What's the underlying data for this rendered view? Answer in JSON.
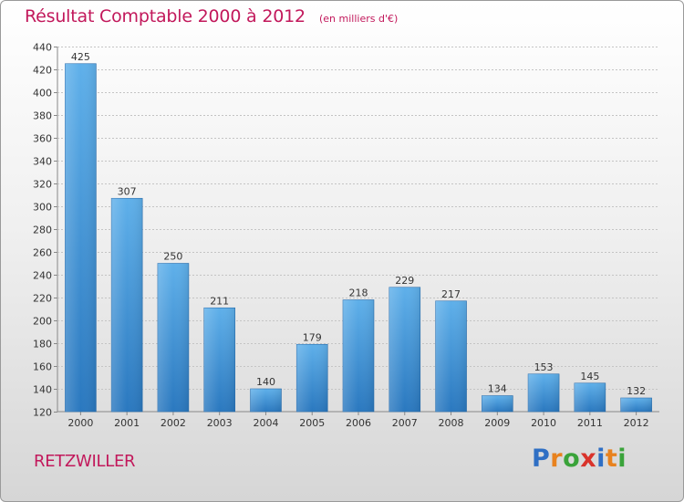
{
  "chart_data": {
    "type": "bar",
    "title": "Résultat Comptable 2000 à 2012",
    "subtitle": "(en milliers d'€)",
    "categories": [
      "2000",
      "2001",
      "2002",
      "2003",
      "2004",
      "2005",
      "2006",
      "2007",
      "2008",
      "2009",
      "2010",
      "2011",
      "2012"
    ],
    "values": [
      425,
      307,
      250,
      211,
      140,
      179,
      218,
      229,
      217,
      134,
      153,
      145,
      132
    ],
    "ylim": [
      120,
      440
    ],
    "yticks": [
      120,
      140,
      160,
      180,
      200,
      220,
      240,
      260,
      280,
      300,
      320,
      340,
      360,
      380,
      400,
      420,
      440
    ],
    "grid": true,
    "xlabel": "",
    "ylabel": "",
    "bar_color": "#3a8fd6"
  },
  "footer": {
    "commune": "RETZWILLER",
    "logo_letters": [
      "P",
      "r",
      "o",
      "x",
      "i",
      "t",
      "i"
    ],
    "logo_colors": [
      "#2f6fc4",
      "#e8821e",
      "#3aa33a",
      "#d9332b",
      "#2f6fc4",
      "#e8821e",
      "#3aa33a"
    ]
  }
}
